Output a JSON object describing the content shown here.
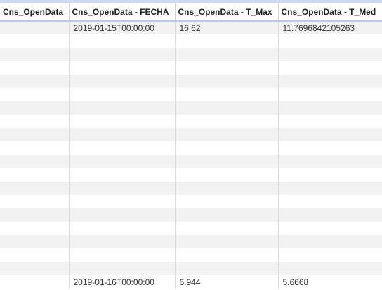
{
  "table": {
    "columns": [
      "Cns_OpenData",
      "Cns_OpenData - FECHA",
      "Cns_OpenData - T_Max",
      "Cns_OpenData - T_Med"
    ],
    "rows": [
      [
        "",
        "2019-01-15T00:00:00",
        "16.62",
        "11.7696842105263"
      ],
      [
        "",
        "",
        "",
        ""
      ],
      [
        "",
        "",
        "",
        ""
      ],
      [
        "",
        "",
        "",
        ""
      ],
      [
        "",
        "",
        "",
        ""
      ],
      [
        "",
        "",
        "",
        ""
      ],
      [
        "",
        "",
        "",
        ""
      ],
      [
        "",
        "",
        "",
        ""
      ],
      [
        "",
        "",
        "",
        ""
      ],
      [
        "",
        "",
        "",
        ""
      ],
      [
        "",
        "",
        "",
        ""
      ],
      [
        "",
        "",
        "",
        ""
      ],
      [
        "",
        "",
        "",
        ""
      ],
      [
        "",
        "",
        "",
        ""
      ],
      [
        "",
        "",
        "",
        ""
      ],
      [
        "",
        "",
        "",
        ""
      ],
      [
        "",
        "",
        "",
        ""
      ],
      [
        "",
        "",
        "",
        ""
      ],
      [
        "",
        "",
        "",
        ""
      ],
      [
        "",
        "2019-01-16T00:00:00",
        "6.944",
        "5.6668"
      ]
    ]
  },
  "colors": {
    "header_border": "#b9c7f5",
    "stripe": "#f2f2f2",
    "top_strip": "#cfd8f8"
  }
}
